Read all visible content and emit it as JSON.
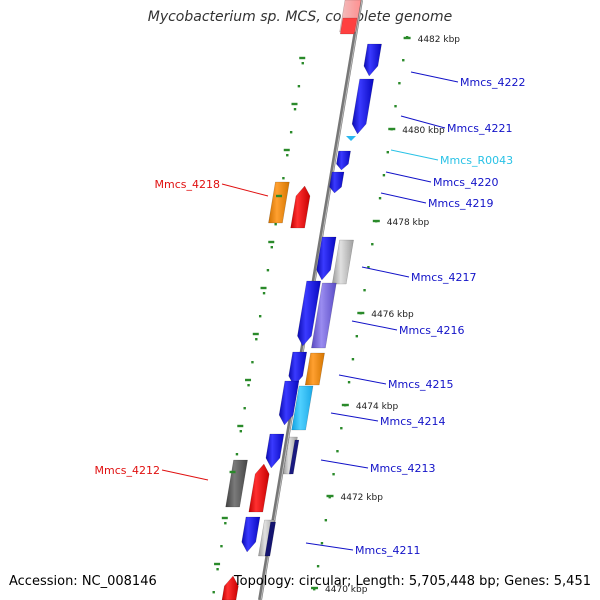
{
  "title": "Mycobacterium sp. MCS, complete genome",
  "footer": {
    "accession": "Accession: NC_008146",
    "summary": "Topology: circular; Length: 5,705,448 bp; Genes: 5,451"
  },
  "colors": {
    "forward_gene": "#1515e6",
    "reverse_gene": "#ee0f0f",
    "grey_feature": "#b9b9b9",
    "dark_grey_feature": "#5f5f5f",
    "orange_feature": "#f08a10",
    "cyan_feature": "#2ab8f0",
    "purple_feature": "#7a6adc",
    "tick": "#2a8a2a",
    "backbone": "#8a8a8a",
    "label_blue": "#1212c8",
    "label_red": "#e01010",
    "label_cyan": "#29c2e6"
  },
  "scale": {
    "unit": "kbp",
    "ticks": [
      {
        "label": "4482 kbp"
      },
      {
        "label": "4480 kbp"
      },
      {
        "label": "4478 kbp"
      },
      {
        "label": "4476 kbp"
      },
      {
        "label": "4474 kbp"
      },
      {
        "label": "4472 kbp"
      },
      {
        "label": "4470 kbp"
      }
    ]
  },
  "genes": [
    {
      "label": "Mmcs_4222",
      "strand": "forward"
    },
    {
      "label": "Mmcs_4221",
      "strand": "forward"
    },
    {
      "label": "Mmcs_R0043",
      "strand": "forward",
      "type": "RNA"
    },
    {
      "label": "Mmcs_4220",
      "strand": "forward"
    },
    {
      "label": "Mmcs_4219",
      "strand": "forward"
    },
    {
      "label": "Mmcs_4218",
      "strand": "reverse"
    },
    {
      "label": "Mmcs_4217",
      "strand": "forward"
    },
    {
      "label": "Mmcs_4216",
      "strand": "forward"
    },
    {
      "label": "Mmcs_4215",
      "strand": "forward"
    },
    {
      "label": "Mmcs_4214",
      "strand": "forward"
    },
    {
      "label": "Mmcs_4213",
      "strand": "forward"
    },
    {
      "label": "Mmcs_4212",
      "strand": "reverse"
    },
    {
      "label": "Mmcs_4211",
      "strand": "forward"
    }
  ]
}
